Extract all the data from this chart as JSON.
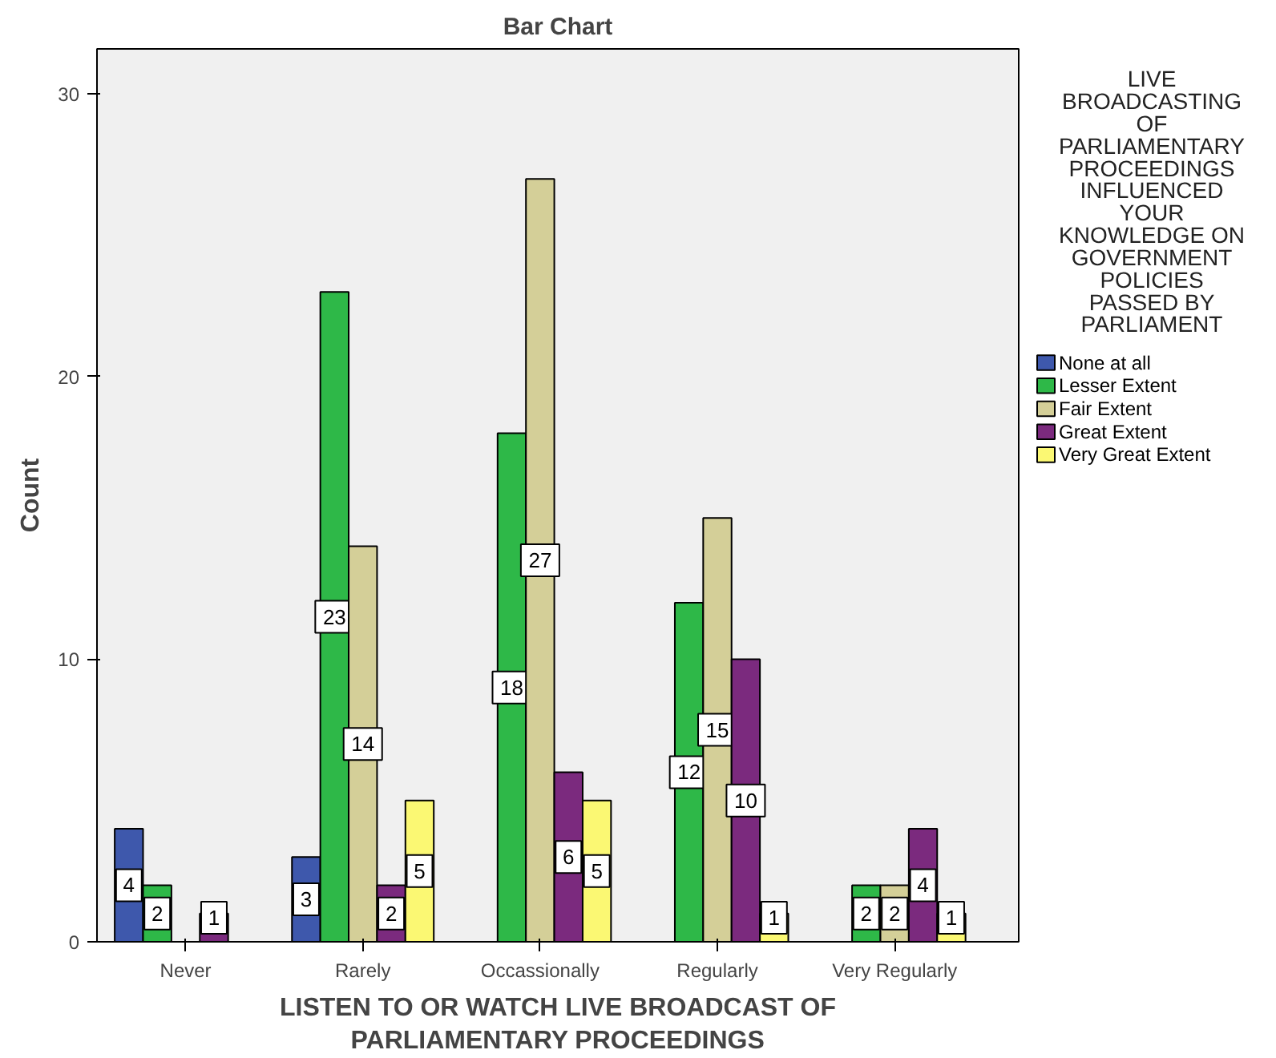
{
  "chart_data": {
    "type": "bar",
    "title": "Bar Chart",
    "xlabel": "LISTEN TO OR WATCH LIVE BROADCAST OF PARLIAMENTARY PROCEEDINGS",
    "ylabel": "Count",
    "legend_title": "LIVE BROADCASTING OF PARLIAMENTARY PROCEEDINGS INFLUENCED YOUR KNOWLEDGE ON GOVERNMENT POLICIES PASSED BY PARLIAMENT",
    "categories": [
      "Never",
      "Rarely",
      "Occassionally",
      "Regularly",
      "Very Regularly"
    ],
    "series": [
      {
        "name": "None at all",
        "color": "#3e58ac",
        "values": [
          4,
          3,
          null,
          null,
          null
        ]
      },
      {
        "name": "Lesser Extent",
        "color": "#2eb848",
        "values": [
          2,
          23,
          18,
          12,
          2
        ]
      },
      {
        "name": "Fair Extent",
        "color": "#d4cf98",
        "values": [
          null,
          14,
          27,
          15,
          2
        ]
      },
      {
        "name": "Great Extent",
        "color": "#7b2a7e",
        "values": [
          1,
          2,
          6,
          10,
          4
        ]
      },
      {
        "name": "Very Great Extent",
        "color": "#fbf873",
        "values": [
          null,
          5,
          5,
          1,
          1
        ]
      }
    ],
    "ylim": [
      0,
      31.6
    ],
    "yticks": [
      0,
      10,
      20,
      30
    ],
    "grid": false,
    "legend": "right",
    "data_labels": true
  }
}
